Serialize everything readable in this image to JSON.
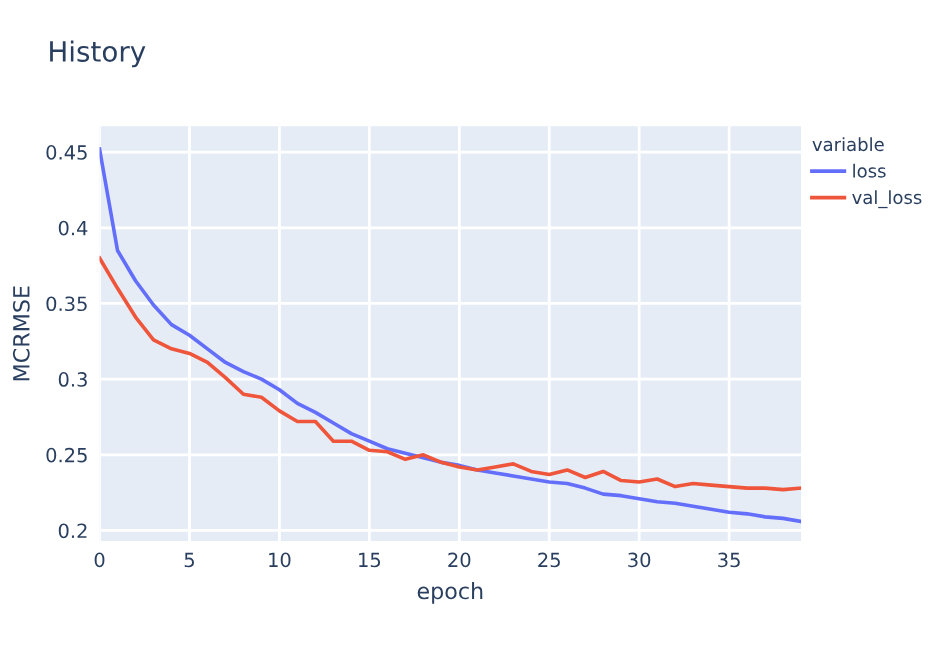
{
  "chart_data": {
    "type": "line",
    "title": "History",
    "xlabel": "epoch",
    "ylabel": "MCRMSE",
    "legend_title": "variable",
    "legend": "top right",
    "x": [
      0,
      1,
      2,
      3,
      4,
      5,
      6,
      7,
      8,
      9,
      10,
      11,
      12,
      13,
      14,
      15,
      16,
      17,
      18,
      19,
      20,
      21,
      22,
      23,
      24,
      25,
      26,
      27,
      28,
      29,
      30,
      31,
      32,
      33,
      34,
      35,
      36,
      37,
      38,
      39
    ],
    "series": [
      {
        "name": "loss",
        "color": "#636efa",
        "values": [
          0.452,
          0.385,
          0.365,
          0.349,
          0.336,
          0.329,
          0.32,
          0.311,
          0.305,
          0.3,
          0.293,
          0.284,
          0.278,
          0.271,
          0.264,
          0.259,
          0.254,
          0.251,
          0.248,
          0.245,
          0.243,
          0.24,
          0.238,
          0.236,
          0.234,
          0.232,
          0.231,
          0.228,
          0.224,
          0.223,
          0.221,
          0.219,
          0.218,
          0.216,
          0.214,
          0.212,
          0.211,
          0.209,
          0.208,
          0.206
        ]
      },
      {
        "name": "val_loss",
        "color": "#ef553b",
        "values": [
          0.38,
          0.36,
          0.341,
          0.326,
          0.32,
          0.317,
          0.311,
          0.301,
          0.29,
          0.288,
          0.279,
          0.272,
          0.272,
          0.259,
          0.259,
          0.253,
          0.252,
          0.247,
          0.25,
          0.245,
          0.242,
          0.24,
          0.242,
          0.244,
          0.239,
          0.237,
          0.24,
          0.235,
          0.239,
          0.233,
          0.232,
          0.234,
          0.229,
          0.231,
          0.23,
          0.229,
          0.228,
          0.228,
          0.227,
          0.228
        ]
      }
    ],
    "xlim": [
      0,
      39
    ],
    "ylim": [
      0.193,
      0.467
    ],
    "xticks": [
      0,
      5,
      10,
      15,
      20,
      25,
      30,
      35
    ],
    "yticks": [
      0.2,
      0.25,
      0.3,
      0.35,
      0.4,
      0.45
    ],
    "grid": true,
    "marker": "none",
    "line_style": "solid"
  }
}
